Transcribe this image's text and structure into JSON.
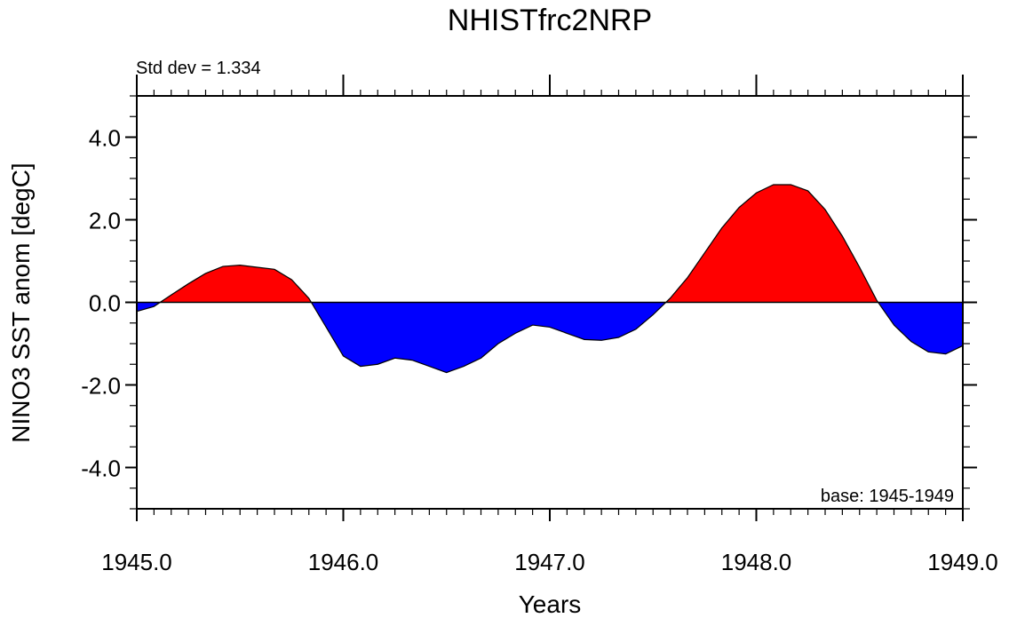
{
  "chart_data": {
    "type": "area",
    "title": "NHISTfrc2NRP",
    "xlabel": "Years",
    "ylabel": "NINO3 SST anom [degC]",
    "left_note": "Std dev = 1.334",
    "right_note": "base: 1945-1949",
    "xlim": [
      1945.0,
      1949.0
    ],
    "ylim": [
      -5.0,
      5.0
    ],
    "x_ticks": [
      1945.0,
      1946.0,
      1947.0,
      1948.0,
      1949.0
    ],
    "x_tick_labels": [
      "1945.0",
      "1946.0",
      "1947.0",
      "1948.0",
      "1949.0"
    ],
    "y_ticks": [
      -4.0,
      -2.0,
      0.0,
      2.0,
      4.0
    ],
    "y_tick_labels": [
      "-4.0",
      "-2.0",
      "0.0",
      "2.0",
      "4.0"
    ],
    "reference_value": 0.0,
    "above_color": "#ff0000",
    "below_color": "#0000ff",
    "series": [
      {
        "name": "NINO3 SST anomaly",
        "x": [
          1945.0,
          1945.083,
          1945.167,
          1945.25,
          1945.333,
          1945.417,
          1945.5,
          1945.583,
          1945.667,
          1945.75,
          1945.833,
          1945.917,
          1946.0,
          1946.083,
          1946.167,
          1946.25,
          1946.333,
          1946.417,
          1946.5,
          1946.583,
          1946.667,
          1946.75,
          1946.833,
          1946.917,
          1947.0,
          1947.083,
          1947.167,
          1947.25,
          1947.333,
          1947.417,
          1947.5,
          1947.583,
          1947.667,
          1947.75,
          1947.833,
          1947.917,
          1948.0,
          1948.083,
          1948.167,
          1948.25,
          1948.333,
          1948.417,
          1948.5,
          1948.583,
          1948.667,
          1948.75,
          1948.833,
          1948.917,
          1949.0
        ],
        "values": [
          -0.22,
          -0.1,
          0.18,
          0.45,
          0.7,
          0.87,
          0.9,
          0.85,
          0.8,
          0.55,
          0.1,
          -0.6,
          -1.3,
          -1.55,
          -1.5,
          -1.35,
          -1.4,
          -1.55,
          -1.7,
          -1.55,
          -1.35,
          -1.0,
          -0.75,
          -0.55,
          -0.6,
          -0.75,
          -0.9,
          -0.92,
          -0.85,
          -0.65,
          -0.3,
          0.1,
          0.6,
          1.2,
          1.8,
          2.3,
          2.65,
          2.85,
          2.85,
          2.7,
          2.25,
          1.6,
          0.85,
          0.05,
          -0.55,
          -0.95,
          -1.2,
          -1.25,
          -1.05
        ]
      }
    ]
  }
}
